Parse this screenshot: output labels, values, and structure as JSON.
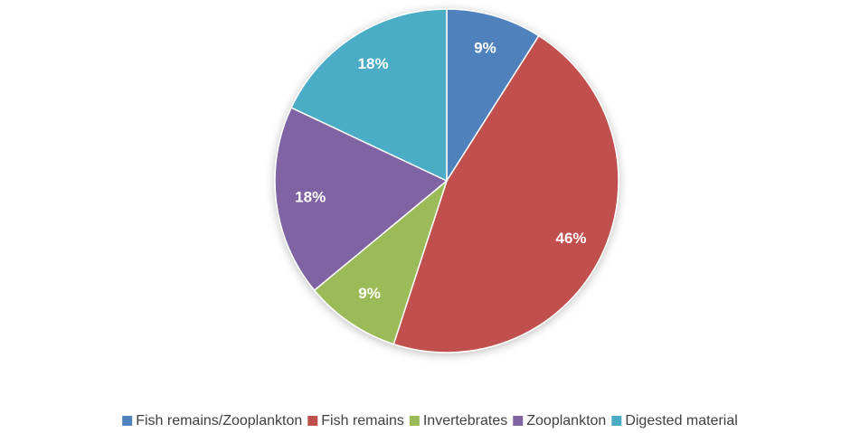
{
  "chart_data": {
    "type": "pie",
    "categories": [
      "Fish remains/Zooplankton",
      "Fish remains",
      "Invertebrates",
      "Zooplankton",
      "Digested material"
    ],
    "values": [
      9,
      46,
      9,
      18,
      18
    ],
    "value_labels": [
      "9%",
      "46%",
      "9%",
      "18%",
      "18%"
    ],
    "colors": [
      "#4f81bd",
      "#c0504d",
      "#9bbb59",
      "#8064a2",
      "#4bacc6"
    ],
    "legend": "bottom"
  }
}
